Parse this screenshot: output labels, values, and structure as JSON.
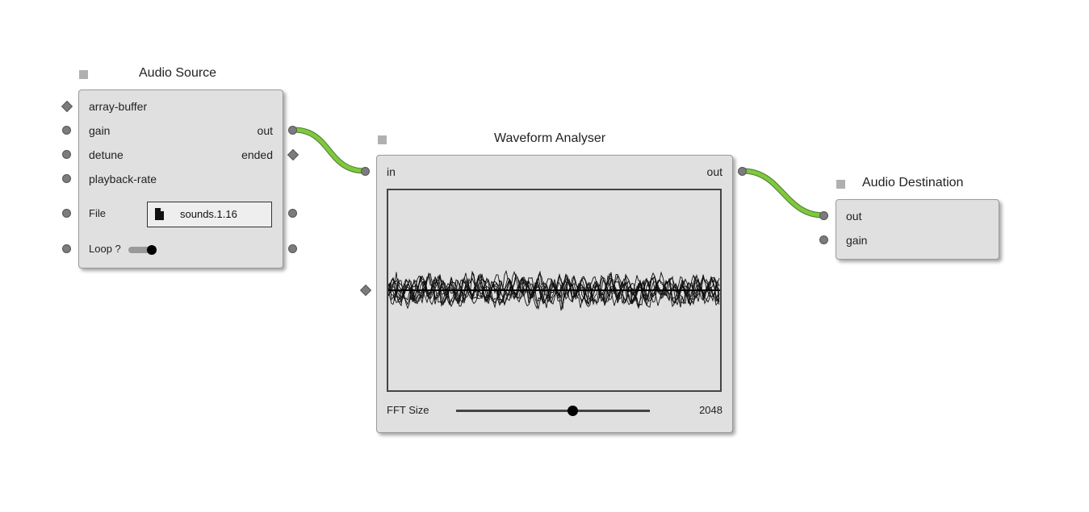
{
  "audio_source": {
    "title": "Audio Source",
    "inputs": [
      "array-buffer",
      "gain",
      "detune",
      "playback-rate"
    ],
    "outputs": {
      "out": "out",
      "ended": "ended"
    },
    "file_label": "File",
    "file_name": "sounds.1.16",
    "loop_label": "Loop ?",
    "loop_on": true
  },
  "waveform_analyser": {
    "title": "Waveform Analyser",
    "in_label": "in",
    "out_label": "out",
    "fft_label": "FFT Size",
    "fft_value": "2048",
    "fft_slider_fraction": 0.6
  },
  "audio_destination": {
    "title": "Audio Destination",
    "inputs": [
      "out",
      "gain"
    ]
  },
  "colors": {
    "node_bg": "#e0e0e0",
    "connection": "#7ec83f",
    "port": "#7c7c7c"
  }
}
